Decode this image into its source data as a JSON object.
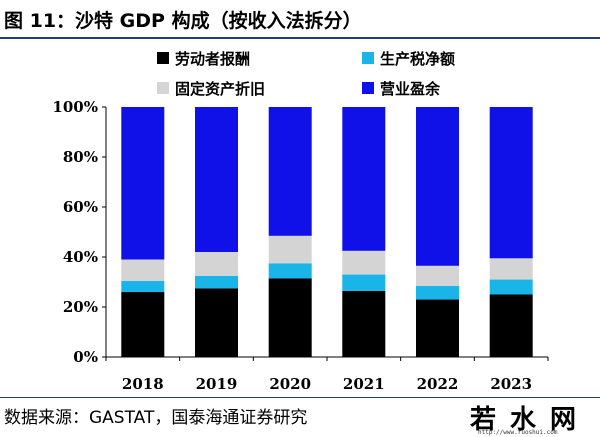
{
  "figure": {
    "title": "图 11：沙特 GDP 构成（按收入法拆分）",
    "source": "数据来源：GASTAT，国泰海通证券研究",
    "watermark": "若水网",
    "watermark_url": "http://www.ruoshui.com"
  },
  "chart_data": {
    "type": "bar",
    "stacked": true,
    "categories": [
      "2018",
      "2019",
      "2020",
      "2021",
      "2022",
      "2023"
    ],
    "series": [
      {
        "name": "劳动者报酬",
        "color": "#000000",
        "values": [
          26,
          27.5,
          31.5,
          26.5,
          23,
          25
        ]
      },
      {
        "name": "生产税净额",
        "color": "#19b4e8",
        "values": [
          4.5,
          5,
          6,
          6.5,
          5.5,
          6
        ]
      },
      {
        "name": "固定资产折旧",
        "color": "#d4d4d4",
        "values": [
          8.5,
          9.5,
          11,
          9.5,
          8,
          8.5
        ]
      },
      {
        "name": "营业盈余",
        "color": "#1010e8",
        "values": [
          61,
          58,
          51.5,
          57.5,
          63.5,
          60.5
        ]
      }
    ],
    "y_ticks": [
      "0%",
      "20%",
      "40%",
      "60%",
      "80%",
      "100%"
    ],
    "ylim": [
      0,
      100
    ],
    "legend": "top",
    "grid": false,
    "xlabel": "",
    "ylabel": ""
  }
}
